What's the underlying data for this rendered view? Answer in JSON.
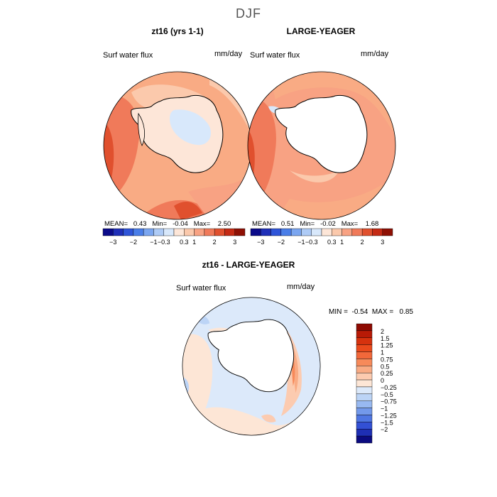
{
  "figure_title": "DJF",
  "chart_data": [
    {
      "type": "heatmap",
      "title": "zt16 (yrs 1-1)",
      "variable_label": "Surf water flux",
      "units": "mm/day",
      "stats": {
        "mean_label": "MEAN=",
        "mean": "0.43",
        "min_label": "Min=",
        "min": "-0.04",
        "max_label": "Max=",
        "max": "2.50"
      },
      "colorbar_ticks": [
        "-3",
        "-2",
        "-1",
        "-0.3",
        "0.3",
        "1",
        "2",
        "3"
      ]
    },
    {
      "type": "heatmap",
      "title": "LARGE-YEAGER",
      "variable_label": "Surf water flux",
      "units": "mm/day",
      "stats": {
        "mean_label": "MEAN=",
        "mean": "0.51",
        "min_label": "Min=",
        "min": "-0.02",
        "max_label": "Max=",
        "max": "1.68"
      },
      "colorbar_ticks": [
        "-3",
        "-2",
        "-1",
        "-0.3",
        "0.3",
        "1",
        "2",
        "3"
      ]
    },
    {
      "type": "heatmap",
      "title": "zt16 - LARGE-YEAGER",
      "variable_label": "Surf water flux",
      "units": "mm/day",
      "stats": {
        "min_label": "MIN =",
        "min": "-0.54",
        "max_label": "MAX =",
        "max": "0.85"
      },
      "colorbar_ticks": [
        "2",
        "1.5",
        "1.25",
        "1",
        "0.75",
        "0.5",
        "0.25",
        "0",
        "-0.25",
        "-0.5",
        "-0.75",
        "-1",
        "-1.25",
        "-1.5",
        "-2"
      ]
    }
  ],
  "colors": {
    "top_scale": [
      "#0b0b8a",
      "#1f2fb8",
      "#2f55d8",
      "#4a7ee8",
      "#7ba6f0",
      "#aecbf6",
      "#d8e8fb",
      "#fde6d8",
      "#fbc9ac",
      "#f8a283",
      "#f07a5a",
      "#e0502e",
      "#c42a14",
      "#8e1004"
    ],
    "diff_scale": [
      "#8e0a02",
      "#b81a06",
      "#d6320e",
      "#ea4a1c",
      "#f2683a",
      "#f78a5a",
      "#f9ab84",
      "#fccbb0",
      "#fde6d6",
      "#dce9fa",
      "#bcd4f6",
      "#98b9f1",
      "#7399ea",
      "#4f76e2",
      "#3350d4",
      "#1e2fb4",
      "#0b0b80"
    ],
    "land": "#ffffff",
    "coast": "#000000"
  }
}
